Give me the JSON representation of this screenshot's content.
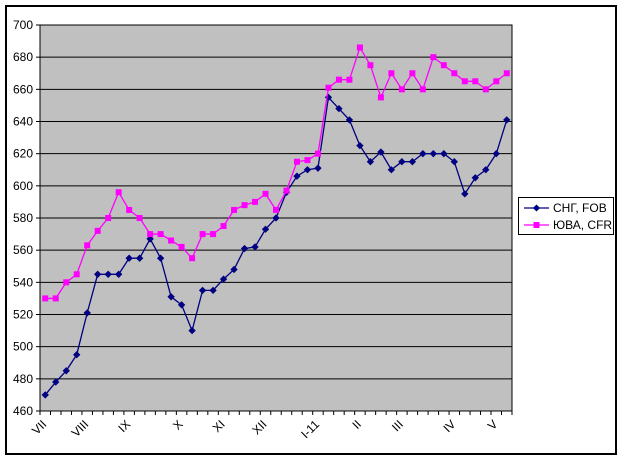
{
  "chart_data": {
    "type": "line",
    "title": "",
    "xlabel": "",
    "ylabel": "",
    "ylim": [
      460,
      700
    ],
    "ytick_step": 20,
    "y_ticks": [
      460,
      480,
      500,
      520,
      540,
      560,
      580,
      600,
      620,
      640,
      660,
      680,
      700
    ],
    "grid": true,
    "plot_bg": "#C0C0C0",
    "frame_color": "#000000",
    "legend_position": "right",
    "categories_count": 45,
    "x_unit": "weeks, Jul 2010 - May 2011",
    "month_ticks": [
      {
        "index": 0,
        "label": "VII"
      },
      {
        "index": 4,
        "label": "VIII"
      },
      {
        "index": 8,
        "label": "IX"
      },
      {
        "index": 13,
        "label": "X"
      },
      {
        "index": 17,
        "label": "XI"
      },
      {
        "index": 21,
        "label": "XII"
      },
      {
        "index": 26,
        "label": "I-11"
      },
      {
        "index": 30,
        "label": "II"
      },
      {
        "index": 34,
        "label": "III"
      },
      {
        "index": 39,
        "label": "IV"
      },
      {
        "index": 43,
        "label": "V"
      }
    ],
    "series": [
      {
        "name": "СНГ, FOB",
        "color": "#000080",
        "marker": "diamond",
        "values": [
          470,
          478,
          485,
          495,
          521,
          545,
          545,
          545,
          555,
          555,
          567,
          555,
          531,
          526,
          510,
          535,
          535,
          542,
          548,
          561,
          562,
          573,
          580,
          596,
          606,
          610,
          611,
          655,
          648,
          641,
          625,
          615,
          621,
          610,
          615,
          615,
          620,
          620,
          620,
          615,
          595,
          605,
          610,
          620,
          641
        ]
      },
      {
        "name": "ЮВА, CFR",
        "color": "#FF00FF",
        "marker": "square",
        "values": [
          530,
          530,
          540,
          545,
          563,
          572,
          580,
          596,
          585,
          580,
          570,
          570,
          566,
          562,
          555,
          570,
          570,
          575,
          585,
          588,
          590,
          595,
          585,
          597,
          615,
          616,
          620,
          661,
          666,
          666,
          686,
          675,
          655,
          670,
          660,
          670,
          660,
          680,
          675,
          670,
          665,
          665,
          660,
          665,
          670
        ]
      }
    ]
  }
}
